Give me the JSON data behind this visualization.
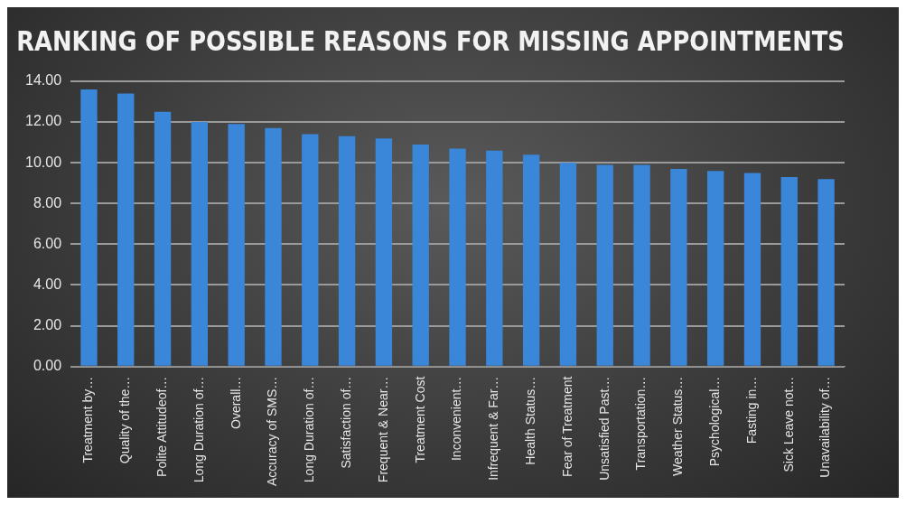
{
  "chart_data": {
    "type": "bar",
    "title": "RANKING OF POSSIBLE REASONS FOR MISSING APPOINTMENTS",
    "categories": [
      "Treatment by…",
      "Quality of the…",
      "Polite Attitudeof…",
      "Long Duration of…",
      "Overall…",
      "Accuracy of SMS…",
      "Long Duration of…",
      "Satisfaction of…",
      "Frequent & Near…",
      "Treatment Cost",
      "Inconvenient…",
      "Infrequent & Far…",
      "Health Status…",
      "Fear of Treatment",
      "Unsatisfied Past…",
      "Transportation…",
      "Weather Status…",
      "Psychological…",
      "Fasting in…",
      "Sick Leave not…",
      "Unavailability of…"
    ],
    "values": [
      13.6,
      13.4,
      12.5,
      12.0,
      11.9,
      11.7,
      11.4,
      11.3,
      11.2,
      10.9,
      10.7,
      10.6,
      10.4,
      10.0,
      9.9,
      9.9,
      9.7,
      9.6,
      9.5,
      9.3,
      9.2
    ],
    "color": "#3a86d8",
    "ylim": [
      0,
      14
    ],
    "yticks": [
      {
        "value": 0,
        "label": "0.00"
      },
      {
        "value": 2,
        "label": "2.00"
      },
      {
        "value": 4,
        "label": "4.00"
      },
      {
        "value": 6,
        "label": "6.00"
      },
      {
        "value": 8,
        "label": "8.00"
      },
      {
        "value": 10,
        "label": "10.00"
      },
      {
        "value": 12,
        "label": "12.00"
      },
      {
        "value": 14,
        "label": "14.00"
      }
    ],
    "grid": "y"
  }
}
